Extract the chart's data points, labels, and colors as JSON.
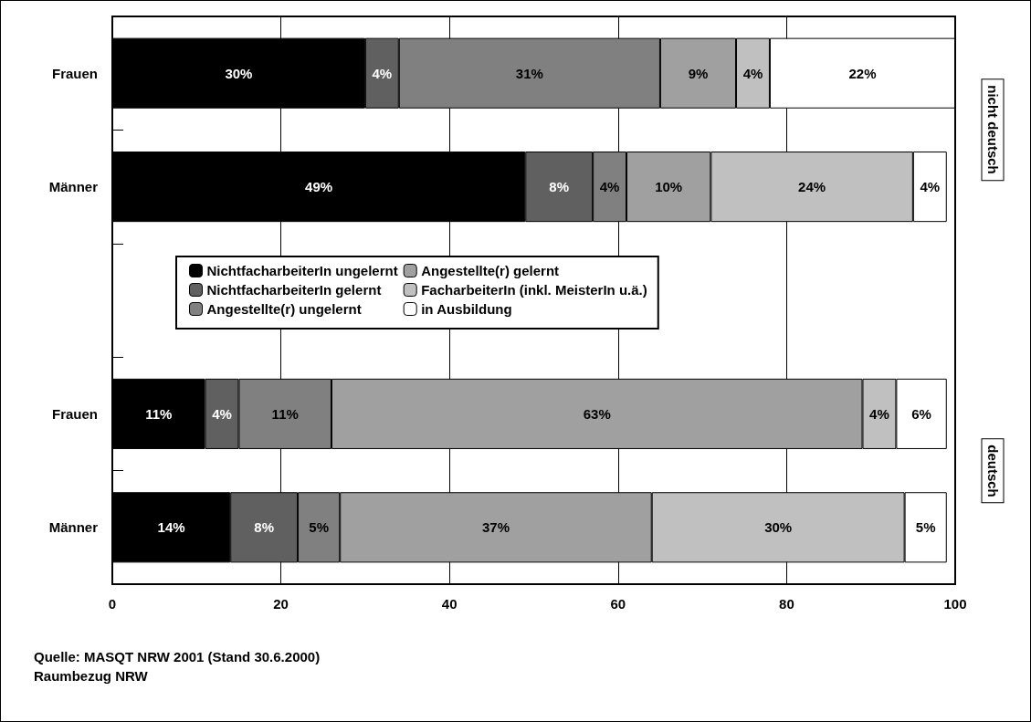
{
  "chart_data": {
    "type": "bar",
    "orientation": "horizontal",
    "stacked": true,
    "categories": [
      "Frauen",
      "Männer",
      null,
      "Frauen",
      "Männer"
    ],
    "series": [
      {
        "name": "NichtfacharbeiterIn ungelernt",
        "color": "#000000",
        "values": [
          30,
          49,
          null,
          11,
          14
        ],
        "value_labels": [
          "30%",
          "49%",
          null,
          "11%",
          "14%"
        ]
      },
      {
        "name": "NichtfacharbeiterIn gelernt",
        "color": "#606060",
        "values": [
          4,
          8,
          null,
          4,
          8
        ],
        "value_labels": [
          "4%",
          "8%",
          null,
          "4%",
          "8%"
        ]
      },
      {
        "name": "Angestellte(r) ungelernt",
        "color": "#808080",
        "values": [
          31,
          4,
          null,
          11,
          5
        ],
        "value_labels": [
          "31%",
          "4%",
          null,
          "11%",
          "5%"
        ]
      },
      {
        "name": "Angestellte(r) gelernt",
        "color": "#a0a0a0",
        "values": [
          9,
          10,
          null,
          63,
          37
        ],
        "value_labels": [
          "9%",
          "10%",
          null,
          "63%",
          "37%"
        ]
      },
      {
        "name": "FacharbeiterIn (inkl. MeisterIn u.ä.)",
        "color": "#c0c0c0",
        "values": [
          4,
          24,
          null,
          4,
          30
        ],
        "value_labels": [
          "4%",
          "24%",
          null,
          "4%",
          "30%"
        ]
      },
      {
        "name": "in Ausbildung",
        "color": "#ffffff",
        "values": [
          22,
          4,
          null,
          6,
          5
        ],
        "value_labels": [
          "22%",
          "4%",
          null,
          "6%",
          "5%"
        ]
      }
    ],
    "xlim": [
      0,
      100
    ],
    "xticks": [
      0,
      20,
      40,
      60,
      80,
      100
    ],
    "grid": "x",
    "legend": "center",
    "annotations": [
      "nicht deutsch",
      "deutsch",
      "Quelle: MASQT NRW 2001 (Stand 30.6.2000)",
      "Raumbezug NRW"
    ]
  }
}
